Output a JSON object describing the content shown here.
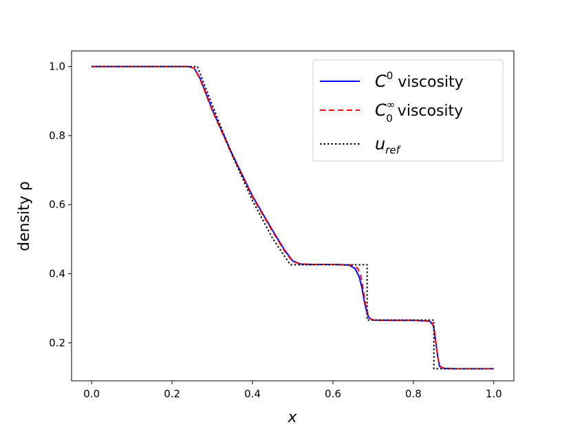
{
  "chart_data": {
    "type": "line",
    "title": "",
    "xlabel": "x",
    "ylabel": "density ρ",
    "xlim": [
      -0.05,
      1.05
    ],
    "ylim": [
      0.09,
      1.045
    ],
    "xticks": [
      0.0,
      0.2,
      0.4,
      0.6,
      0.8,
      1.0
    ],
    "yticks": [
      0.2,
      0.4,
      0.6,
      0.8,
      1.0
    ],
    "xtick_labels": [
      "0.0",
      "0.2",
      "0.4",
      "0.6",
      "0.8",
      "1.0"
    ],
    "ytick_labels": [
      "0.2",
      "0.4",
      "0.6",
      "0.8",
      "1.0"
    ],
    "grid": false,
    "legend_position": "top-right",
    "series": [
      {
        "name": "C0 viscosity",
        "legend": {
          "base": "C",
          "sup": "0",
          "sub": "",
          "text": " viscosity"
        },
        "color": "#0000ff",
        "style": "solid",
        "x": [
          0.0,
          0.24,
          0.255,
          0.27,
          0.3,
          0.35,
          0.4,
          0.45,
          0.48,
          0.5,
          0.52,
          0.55,
          0.6,
          0.64,
          0.655,
          0.665,
          0.672,
          0.678,
          0.685,
          0.69,
          0.7,
          0.75,
          0.8,
          0.84,
          0.85,
          0.855,
          0.86,
          0.865,
          0.875,
          0.9,
          1.0
        ],
        "y": [
          1.0,
          1.0,
          0.995,
          0.965,
          0.875,
          0.745,
          0.625,
          0.525,
          0.468,
          0.437,
          0.428,
          0.427,
          0.427,
          0.425,
          0.415,
          0.392,
          0.36,
          0.32,
          0.285,
          0.272,
          0.266,
          0.265,
          0.265,
          0.263,
          0.25,
          0.21,
          0.165,
          0.132,
          0.126,
          0.125,
          0.125
        ]
      },
      {
        "name": "C0∞ viscosity",
        "legend": {
          "base": "C",
          "sup": "∞",
          "sub": "0",
          "text": " viscosity"
        },
        "color": "#ff0000",
        "style": "dashed",
        "x": [
          0.0,
          0.24,
          0.255,
          0.27,
          0.3,
          0.35,
          0.4,
          0.45,
          0.48,
          0.5,
          0.52,
          0.55,
          0.6,
          0.65,
          0.662,
          0.67,
          0.676,
          0.682,
          0.688,
          0.695,
          0.705,
          0.75,
          0.8,
          0.845,
          0.852,
          0.857,
          0.862,
          0.868,
          0.878,
          0.9,
          1.0
        ],
        "y": [
          1.0,
          1.0,
          0.995,
          0.962,
          0.872,
          0.742,
          0.622,
          0.522,
          0.465,
          0.435,
          0.428,
          0.427,
          0.427,
          0.425,
          0.415,
          0.39,
          0.35,
          0.305,
          0.278,
          0.268,
          0.265,
          0.265,
          0.265,
          0.262,
          0.24,
          0.19,
          0.15,
          0.13,
          0.126,
          0.125,
          0.125
        ]
      },
      {
        "name": "u_ref",
        "legend": {
          "base": "u",
          "sup": "",
          "sub": "ref",
          "text": ""
        },
        "color": "#000000",
        "style": "dotted",
        "x": [
          0.0,
          0.263,
          0.3,
          0.35,
          0.4,
          0.45,
          0.494,
          0.6,
          0.685,
          0.685,
          0.75,
          0.851,
          0.851,
          1.0
        ],
        "y": [
          1.0,
          1.0,
          0.888,
          0.742,
          0.612,
          0.502,
          0.426,
          0.426,
          0.426,
          0.266,
          0.266,
          0.266,
          0.125,
          0.125
        ]
      }
    ]
  }
}
